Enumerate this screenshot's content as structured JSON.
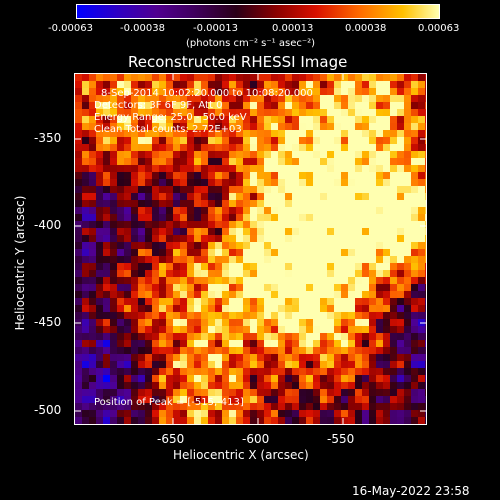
{
  "colorbar": {
    "tick_labels": [
      "-0.00063",
      "-0.00038",
      "-0.00013",
      "0.00013",
      "0.00038",
      "0.00063"
    ],
    "unit_label": "(photons cm⁻² s⁻¹ asec⁻²)"
  },
  "title": "Reconstructed RHESSI Image",
  "info": {
    "line1": "8-Sep-2014 10:02:20.000 to 10:08:20.000",
    "line2": "Detectors: 3F 6F 9F, Att 0",
    "line3": "Energy Range: 25.0 - 50.0 keV",
    "line4": "Clean     Total counts: 2.72E+03",
    "peak": "Position of Peak = [-515,-413]"
  },
  "axes": {
    "xlabel": "Heliocentric X (arcsec)",
    "ylabel": "Heliocentric Y (arcsec)",
    "x_ticks": [
      "-650",
      "-600",
      "-550"
    ],
    "y_ticks": [
      "-350",
      "-400",
      "-450",
      "-500"
    ]
  },
  "footer": {
    "timestamp": "16-May-2022 23:58"
  },
  "colors": {
    "cmap_min": "#0000ff",
    "cmap_max": "#ffffb0"
  }
}
